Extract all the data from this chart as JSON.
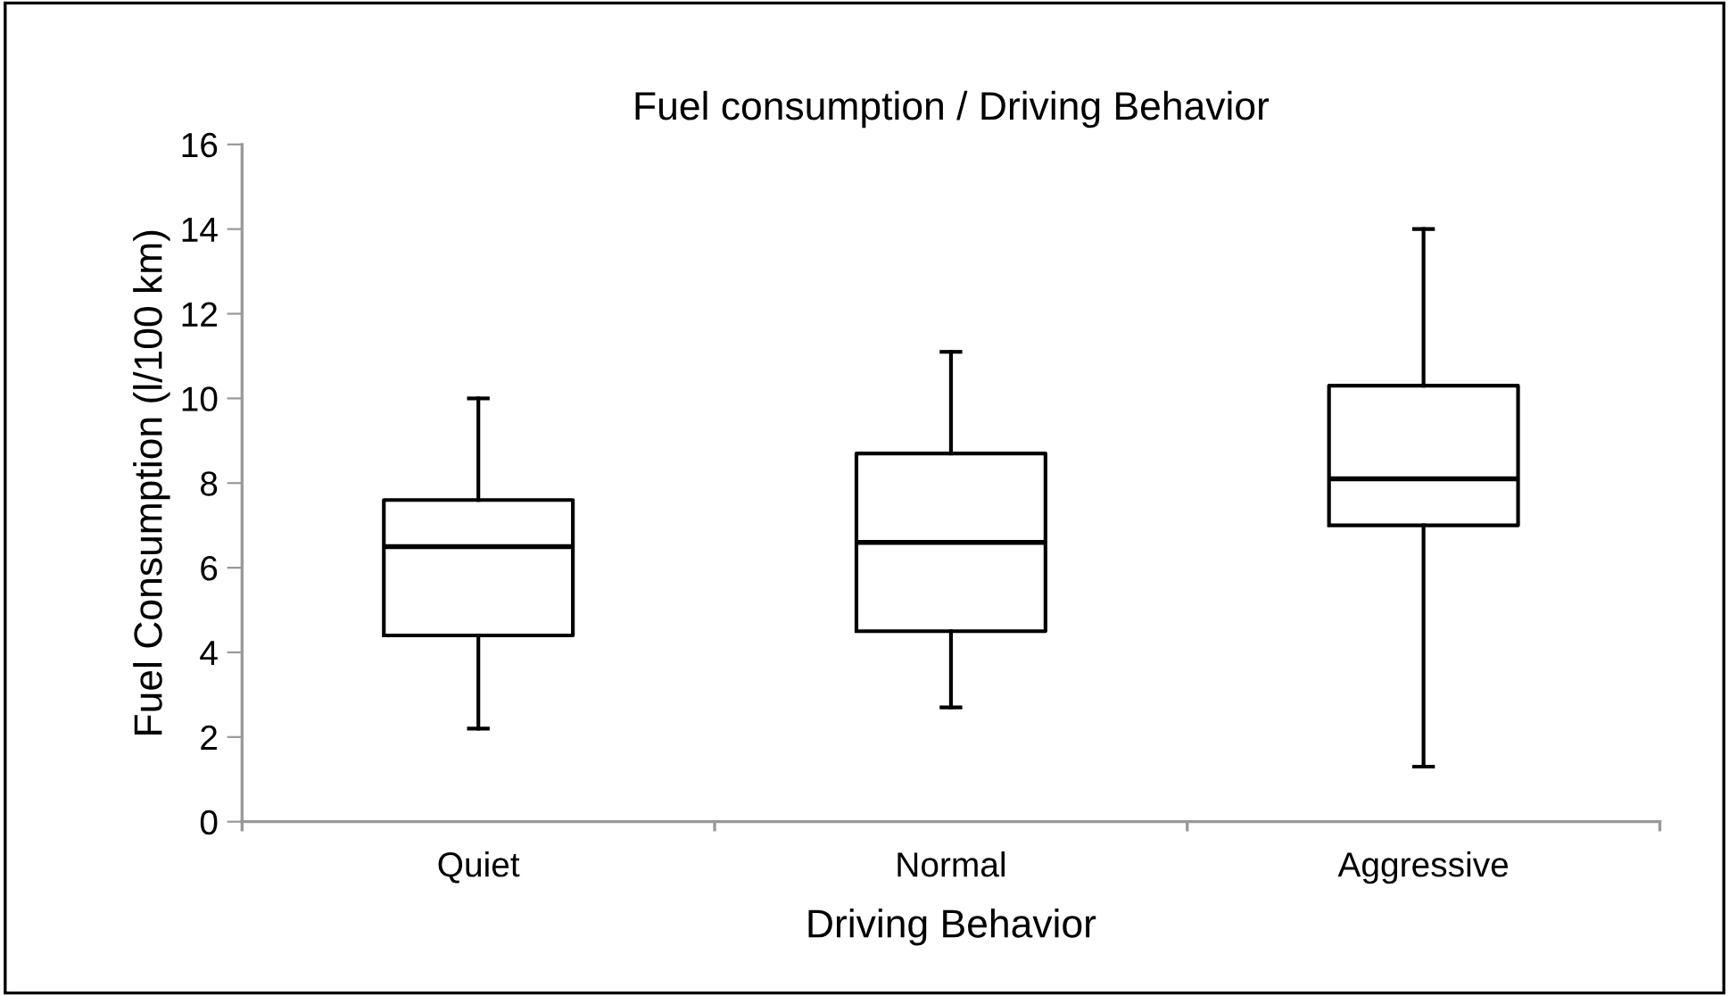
{
  "chart_data": {
    "type": "box",
    "title": "Fuel consumption / Driving Behavior",
    "xlabel": "Driving Behavior",
    "ylabel": "Fuel Consumption (l/100 km)",
    "categories": [
      "Quiet",
      "Normal",
      "Aggressive"
    ],
    "boxes": [
      {
        "low": 2.2,
        "q1": 4.4,
        "median": 6.5,
        "q3": 7.6,
        "high": 10.0
      },
      {
        "low": 2.7,
        "q1": 4.5,
        "median": 6.6,
        "q3": 8.7,
        "high": 11.1
      },
      {
        "low": 1.3,
        "q1": 7.0,
        "median": 8.1,
        "q3": 10.3,
        "high": 14.0
      }
    ],
    "color": "#000000",
    "ylim": [
      0,
      16
    ],
    "yticks": [
      0,
      2,
      4,
      6,
      8,
      10,
      12,
      14,
      16
    ],
    "grid": false
  }
}
